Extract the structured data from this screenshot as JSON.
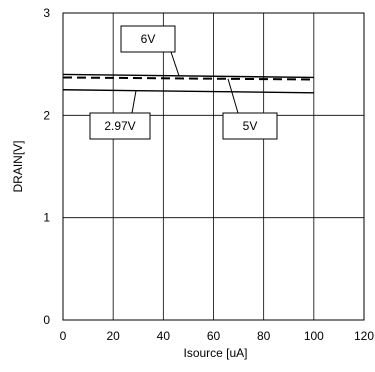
{
  "chart_data": {
    "type": "line",
    "title": "",
    "xlabel": "Isource [uA]",
    "ylabel": "DRAIN[V]",
    "xlim": [
      0,
      120
    ],
    "ylim": [
      0,
      3
    ],
    "x_ticks": [
      "0",
      "20",
      "40",
      "60",
      "80",
      "100",
      "120"
    ],
    "y_ticks": [
      "0",
      "1",
      "2",
      "3"
    ],
    "grid": true,
    "legend": "callout labels pointing to lines",
    "series": [
      {
        "name": "6V",
        "style": "solid",
        "x": [
          0,
          100
        ],
        "y": [
          2.4,
          2.37
        ]
      },
      {
        "name": "5V",
        "style": "dashed",
        "x": [
          0,
          100
        ],
        "y": [
          2.37,
          2.35
        ]
      },
      {
        "name": "2.97V",
        "style": "solid",
        "x": [
          0,
          100
        ],
        "y": [
          2.25,
          2.22
        ]
      }
    ],
    "callouts": [
      {
        "label": "6V",
        "series": "6V"
      },
      {
        "label": "2.97V",
        "series": "2.97V"
      },
      {
        "label": "5V",
        "series": "5V"
      }
    ]
  }
}
